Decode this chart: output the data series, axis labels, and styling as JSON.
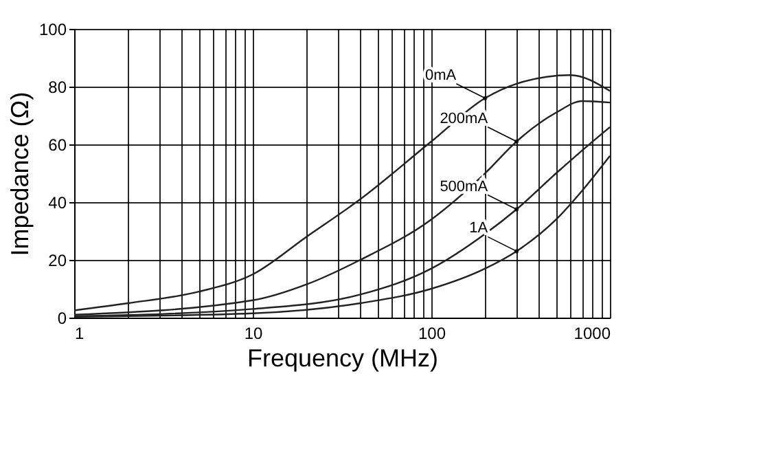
{
  "chart_data": {
    "type": "line",
    "xlabel": "Frequency (MHz)",
    "ylabel": "Impedance (Ω)",
    "log": "x",
    "grid": true,
    "legend": false,
    "marker": "none",
    "line_style": "solid",
    "xlim": [
      1,
      1000
    ],
    "ylim": [
      0,
      100
    ],
    "yticks": [
      0,
      20,
      40,
      60,
      80,
      100
    ],
    "xticks": [
      1,
      {
        "value": 2,
        "label": null
      },
      {
        "value": 3,
        "label": null
      },
      {
        "value": 4,
        "label": null
      },
      {
        "value": 5,
        "label": null
      },
      {
        "value": 6,
        "label": null
      },
      {
        "value": 7,
        "label": null
      },
      {
        "value": 8,
        "label": null
      },
      {
        "value": 9,
        "label": null
      },
      10,
      {
        "value": 20,
        "label": null
      },
      {
        "value": 30,
        "label": null
      },
      {
        "value": 40,
        "label": null
      },
      {
        "value": 50,
        "label": null
      },
      {
        "value": 60,
        "label": null
      },
      {
        "value": 70,
        "label": null
      },
      {
        "value": 80,
        "label": null
      },
      {
        "value": 90,
        "label": null
      },
      100,
      {
        "value": 200,
        "label": null
      },
      {
        "value": 300,
        "label": null
      },
      {
        "value": 400,
        "label": null
      },
      {
        "value": 500,
        "label": null
      },
      {
        "value": 600,
        "label": null
      },
      {
        "value": 700,
        "label": null
      },
      {
        "value": 800,
        "label": null
      },
      {
        "value": 900,
        "label": null
      },
      1000
    ],
    "series": [
      {
        "name": "0mA",
        "color": "#222222",
        "x": [
          1,
          2,
          5,
          10,
          20,
          40,
          100,
          200,
          300,
          600,
          1000
        ],
        "values": [
          2.5,
          5,
          9,
          15,
          28,
          41,
          61,
          76,
          81,
          84,
          78.5
        ]
      },
      {
        "name": "200mA",
        "color": "#222222",
        "x": [
          1,
          10,
          20,
          40,
          100,
          200,
          300,
          500,
          700,
          1000
        ],
        "values": [
          1,
          6,
          11.5,
          20,
          34,
          50,
          61,
          71,
          75,
          74.5
        ]
      },
      {
        "name": "500mA",
        "color": "#222222",
        "x": [
          1,
          10,
          40,
          100,
          200,
          300,
          500,
          800,
          1000
        ],
        "values": [
          0.5,
          3,
          8,
          17,
          29,
          37.5,
          50,
          61,
          66
        ]
      },
      {
        "name": "1A",
        "color": "#222222",
        "x": [
          1,
          10,
          40,
          100,
          200,
          300,
          500,
          700,
          1000
        ],
        "values": [
          0.3,
          1.5,
          5,
          10,
          17,
          23,
          34,
          44,
          56
        ]
      }
    ]
  }
}
